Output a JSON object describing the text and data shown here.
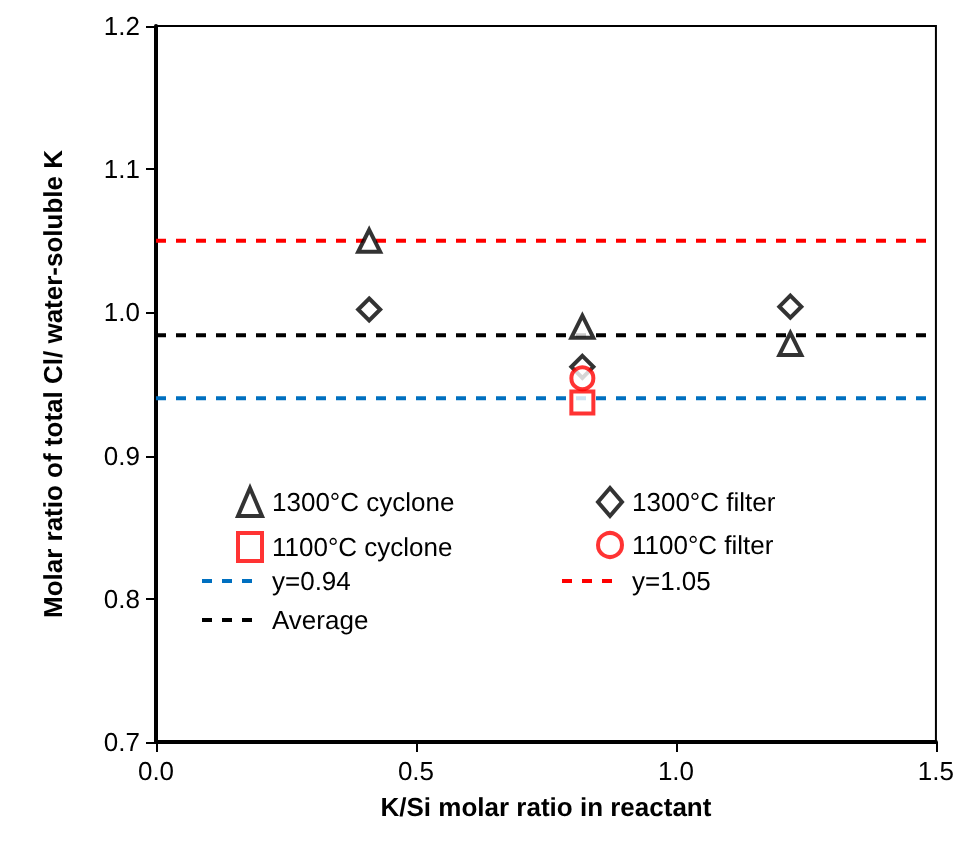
{
  "chart_data": {
    "type": "scatter",
    "xlabel": "K/Si molar ratio in reactant",
    "ylabel": "Molar ratio of total Cl/ water-soluble K",
    "xlim": [
      0,
      1.5
    ],
    "xticks": [
      {
        "value": 0,
        "label": "0.0"
      },
      {
        "value": 0.5,
        "label": "0.5"
      },
      {
        "value": 1,
        "label": "1.0"
      },
      {
        "value": 1.5,
        "label": "1.5"
      }
    ],
    "ylim": [
      0.7,
      1.2
    ],
    "yticks": [
      {
        "value": 0.7,
        "label": "0.7"
      },
      {
        "value": 0.8,
        "label": "0.8"
      },
      {
        "value": 0.9,
        "label": "0.9"
      },
      {
        "value": 1.0,
        "label": "1.0"
      },
      {
        "value": 1.1,
        "label": "1.1"
      },
      {
        "value": 1.2,
        "label": "1.2"
      }
    ],
    "grid": false,
    "legend": "bottom left",
    "series": [
      {
        "name": "1300°C cyclone",
        "color": "#000000",
        "marker": "triangle",
        "x": [
          0.41,
          0.82,
          1.22
        ],
        "values": [
          1.05,
          0.99,
          0.978
        ]
      },
      {
        "name": "1300°C filter",
        "color": "#000000",
        "marker": "diamond",
        "x": [
          0.41,
          0.82,
          1.22
        ],
        "values": [
          1.002,
          0.962,
          1.004
        ]
      },
      {
        "name": "1100°C cyclone",
        "color": "#ff0000",
        "marker": "square",
        "x": [
          0.82
        ],
        "values": [
          0.937
        ]
      },
      {
        "name": "1100°C filter",
        "color": "#ff0000",
        "marker": "circle",
        "x": [
          0.82
        ],
        "values": [
          0.954
        ]
      }
    ],
    "ref_lines": [
      {
        "axis": "y",
        "value": 0.94,
        "label": "y=0.94",
        "color": "#0070c0",
        "line_style": "dashed"
      },
      {
        "axis": "y",
        "value": 1.05,
        "label": "y=1.05",
        "color": "#ff0000",
        "line_style": "dashed"
      },
      {
        "axis": "y",
        "value": 0.984,
        "label": "Average",
        "color": "#000000",
        "line_style": "dashed"
      }
    ]
  }
}
